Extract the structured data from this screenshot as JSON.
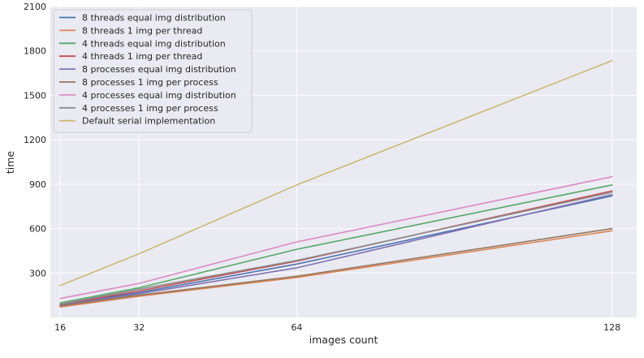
{
  "chart_data": {
    "type": "line",
    "title": "",
    "xlabel": "images count",
    "ylabel": "time",
    "x": [
      16,
      32,
      64,
      128
    ],
    "x_ticks": [
      "16",
      "32",
      "64",
      "128"
    ],
    "y_ticks": [
      "300",
      "600",
      "900",
      "1200",
      "1500",
      "1800",
      "2100"
    ],
    "xlim": [
      14,
      133
    ],
    "ylim": [
      0,
      2100
    ],
    "grid": true,
    "background": "#eaeaf2",
    "legend_position": "top-left",
    "series": [
      {
        "name": "8 threads equal img distribution",
        "color": "#4c72b0",
        "values": [
          88,
          168,
          360,
          820
        ]
      },
      {
        "name": "8 threads 1 img per thread",
        "color": "#dd8452",
        "values": [
          70,
          143,
          270,
          585
        ]
      },
      {
        "name": "4 threads equal img distribution",
        "color": "#55a868",
        "values": [
          98,
          200,
          460,
          895
        ]
      },
      {
        "name": "4 threads 1 img per thread",
        "color": "#c44e52",
        "values": [
          87,
          178,
          380,
          855
        ]
      },
      {
        "name": "8 processes equal img distribution",
        "color": "#8172b3",
        "values": [
          82,
          160,
          335,
          830
        ]
      },
      {
        "name": "8 processes 1 img per process",
        "color": "#937860",
        "values": [
          78,
          150,
          278,
          600
        ]
      },
      {
        "name": "4 processes equal img distribution",
        "color": "#da8bc3",
        "values": [
          128,
          230,
          510,
          950
        ]
      },
      {
        "name": "4 processes 1 img per process",
        "color": "#8c8c8c",
        "values": [
          90,
          190,
          385,
          845
        ]
      },
      {
        "name": "Default serial implementation",
        "color": "#ccb974",
        "values": [
          215,
          430,
          895,
          1735
        ]
      }
    ]
  }
}
